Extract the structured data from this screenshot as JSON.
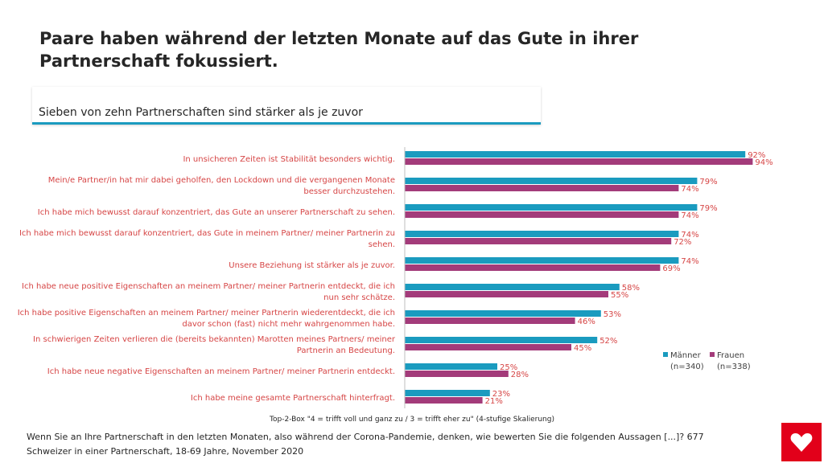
{
  "header": {
    "title": "Paare haben während der letzten Monate auf das Gute in ihrer Partnerschaft fokussiert.",
    "subtitle": "Sieben von zehn Partnerschaften sind stärker als je zuvor"
  },
  "colors": {
    "maenner": "#1a9bbf",
    "frauen": "#a33b7a",
    "label": "#d64545",
    "value": "#d64545",
    "logo": "#e2001a"
  },
  "logo": {
    "icon": "heart-icon"
  },
  "footer": {
    "scale_note": "Top-2-Box \"4 = trifft voll und ganz zu / 3 = trifft eher zu\" (4-stufige Skalierung)",
    "question": "Wenn Sie an Ihre Partnerschaft in den letzten Monaten, also während der Corona-Pandemie, denken, wie bewerten Sie die folgenden Aussagen [...]? 677 Schweizer in einer Partnerschaft, 18-69 Jahre, November 2020"
  },
  "chart_data": {
    "type": "bar",
    "orientation": "horizontal",
    "categories": [
      [
        "In unsicheren Zeiten ist Stabilität besonders wichtig."
      ],
      [
        "Mein/e Partner/in hat mir dabei geholfen, den Lockdown und die vergangenen Monate",
        "besser durchzustehen."
      ],
      [
        "Ich habe mich bewusst darauf konzentriert, das Gute an unserer Partnerschaft zu sehen."
      ],
      [
        "Ich habe mich bewusst darauf konzentriert, das Gute in meinem Partner/ meiner Partnerin zu",
        "sehen."
      ],
      [
        "Unsere Beziehung ist stärker als je zuvor."
      ],
      [
        "Ich habe neue positive Eigenschaften an meinem Partner/ meiner Partnerin entdeckt, die ich",
        "nun sehr schätze."
      ],
      [
        "Ich habe positive Eigenschaften an meinem Partner/ meiner Partnerin wiederentdeckt, die ich",
        "davor schon (fast) nicht mehr wahrgenommen habe."
      ],
      [
        "In schwierigen Zeiten verlieren die (bereits bekannten) Marotten meines Partners/ meiner",
        "Partnerin an Bedeutung."
      ],
      [
        "Ich habe neue negative Eigenschaften an meinem Partner/ meiner Partnerin entdeckt."
      ],
      [
        "Ich habe meine gesamte Partnerschaft hinterfragt."
      ]
    ],
    "series": [
      {
        "name": "Männer",
        "n": "(n=340)",
        "values": [
          92,
          79,
          79,
          74,
          74,
          58,
          53,
          52,
          25,
          23
        ]
      },
      {
        "name": "Frauen",
        "n": "(n=338)",
        "values": [
          94,
          74,
          74,
          72,
          69,
          55,
          46,
          45,
          28,
          21
        ]
      }
    ],
    "value_suffix": "%",
    "xlim": [
      0,
      100
    ],
    "legend": "bottom-right",
    "grid": false
  }
}
